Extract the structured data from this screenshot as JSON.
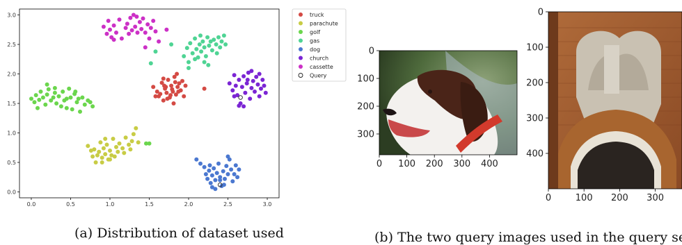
{
  "chart_data": [
    {
      "type": "scatter",
      "title": "",
      "xlabel": "",
      "ylabel": "",
      "xlim": [
        -0.15,
        3.15
      ],
      "ylim": [
        -0.1,
        3.1
      ],
      "xticks": [
        "0.0",
        "0.5",
        "1.0",
        "1.5",
        "2.0",
        "2.5",
        "3.0"
      ],
      "yticks": [
        "0.0",
        "0.5",
        "1.0",
        "1.5",
        "2.0",
        "2.5",
        "3.0"
      ],
      "legend_position": "outside-right",
      "grid": false,
      "series": [
        {
          "name": "truck",
          "color": "#d44a44",
          "cx": 1.75,
          "cy": 1.72,
          "sx": 0.22,
          "sy": 0.13,
          "points": [
            [
              1.55,
              1.78
            ],
            [
              1.6,
              1.7
            ],
            [
              1.62,
              1.62
            ],
            [
              1.66,
              1.85
            ],
            [
              1.68,
              1.55
            ],
            [
              1.7,
              1.75
            ],
            [
              1.72,
              1.68
            ],
            [
              1.74,
              1.9
            ],
            [
              1.76,
              1.6
            ],
            [
              1.78,
              1.8
            ],
            [
              1.8,
              1.7
            ],
            [
              1.82,
              1.95
            ],
            [
              1.84,
              1.65
            ],
            [
              1.86,
              1.78
            ],
            [
              1.88,
              1.84
            ],
            [
              1.9,
              1.72
            ],
            [
              1.92,
              1.88
            ],
            [
              1.94,
              1.62
            ],
            [
              1.64,
              1.66
            ],
            [
              1.69,
              1.8
            ],
            [
              1.73,
              1.58
            ],
            [
              1.79,
              1.74
            ],
            [
              1.83,
              1.86
            ],
            [
              1.87,
              1.7
            ],
            [
              1.58,
              1.62
            ],
            [
              1.96,
              1.8
            ],
            [
              1.81,
              1.5
            ],
            [
              1.68,
              1.92
            ],
            [
              1.71,
              1.78
            ],
            [
              1.77,
              1.64
            ],
            [
              1.85,
              2.0
            ],
            [
              2.2,
              1.75
            ]
          ]
        },
        {
          "name": "parachute",
          "color": "#c8cc45",
          "cx": 1.0,
          "cy": 0.72,
          "sx": 0.2,
          "sy": 0.14,
          "points": [
            [
              0.72,
              0.78
            ],
            [
              0.78,
              0.6
            ],
            [
              0.8,
              0.72
            ],
            [
              0.82,
              0.5
            ],
            [
              0.86,
              0.68
            ],
            [
              0.88,
              0.84
            ],
            [
              0.9,
              0.58
            ],
            [
              0.92,
              0.74
            ],
            [
              0.94,
              0.64
            ],
            [
              0.96,
              0.8
            ],
            [
              0.98,
              0.55
            ],
            [
              1.0,
              0.7
            ],
            [
              1.02,
              0.62
            ],
            [
              1.04,
              0.9
            ],
            [
              1.08,
              0.76
            ],
            [
              1.12,
              0.82
            ],
            [
              1.16,
              0.74
            ],
            [
              1.2,
              0.92
            ],
            [
              1.24,
              0.8
            ],
            [
              1.28,
              0.86
            ],
            [
              1.3,
              0.98
            ],
            [
              1.33,
              1.08
            ],
            [
              1.26,
              0.72
            ],
            [
              0.84,
              0.62
            ],
            [
              0.9,
              0.5
            ],
            [
              1.0,
              0.55
            ],
            [
              0.94,
              0.9
            ],
            [
              1.1,
              0.68
            ],
            [
              1.18,
              0.66
            ],
            [
              1.36,
              0.84
            ],
            [
              0.76,
              0.7
            ],
            [
              1.06,
              0.6
            ]
          ]
        },
        {
          "name": "golf",
          "color": "#6bd64d",
          "cx": 0.4,
          "cy": 1.6,
          "sx": 0.25,
          "sy": 0.1,
          "points": [
            [
              0.0,
              1.58
            ],
            [
              0.04,
              1.52
            ],
            [
              0.06,
              1.64
            ],
            [
              0.1,
              1.56
            ],
            [
              0.12,
              1.7
            ],
            [
              0.15,
              1.6
            ],
            [
              0.18,
              1.48
            ],
            [
              0.2,
              1.65
            ],
            [
              0.22,
              1.74
            ],
            [
              0.25,
              1.55
            ],
            [
              0.28,
              1.6
            ],
            [
              0.3,
              1.68
            ],
            [
              0.32,
              1.5
            ],
            [
              0.35,
              1.62
            ],
            [
              0.38,
              1.45
            ],
            [
              0.4,
              1.7
            ],
            [
              0.42,
              1.55
            ],
            [
              0.45,
              1.58
            ],
            [
              0.48,
              1.75
            ],
            [
              0.5,
              1.6
            ],
            [
              0.52,
              1.4
            ],
            [
              0.55,
              1.66
            ],
            [
              0.58,
              1.52
            ],
            [
              0.6,
              1.58
            ],
            [
              0.62,
              1.36
            ],
            [
              0.65,
              1.6
            ],
            [
              0.68,
              1.48
            ],
            [
              0.72,
              1.55
            ],
            [
              0.75,
              1.52
            ],
            [
              0.78,
              1.45
            ],
            [
              0.08,
              1.42
            ],
            [
              0.3,
              1.76
            ],
            [
              0.45,
              1.42
            ],
            [
              1.46,
              0.82
            ],
            [
              1.5,
              0.82
            ],
            [
              0.2,
              1.82
            ],
            [
              0.56,
              1.7
            ]
          ]
        },
        {
          "name": "gas",
          "color": "#4fd494",
          "cx": 2.2,
          "cy": 2.4,
          "sx": 0.22,
          "sy": 0.18,
          "points": [
            [
              1.94,
              2.3
            ],
            [
              1.98,
              2.44
            ],
            [
              2.0,
              2.2
            ],
            [
              2.02,
              2.52
            ],
            [
              2.05,
              2.35
            ],
            [
              2.08,
              2.6
            ],
            [
              2.1,
              2.42
            ],
            [
              2.12,
              2.28
            ],
            [
              2.14,
              2.5
            ],
            [
              2.16,
              2.38
            ],
            [
              2.18,
              2.55
            ],
            [
              2.2,
              2.45
            ],
            [
              2.22,
              2.3
            ],
            [
              2.24,
              2.62
            ],
            [
              2.26,
              2.48
            ],
            [
              2.28,
              2.55
            ],
            [
              2.3,
              2.4
            ],
            [
              2.32,
              2.58
            ],
            [
              2.35,
              2.5
            ],
            [
              2.38,
              2.62
            ],
            [
              2.4,
              2.45
            ],
            [
              2.42,
              2.55
            ],
            [
              2.45,
              2.65
            ],
            [
              2.47,
              2.5
            ],
            [
              2.2,
              2.2
            ],
            [
              2.25,
              2.15
            ],
            [
              2.0,
              2.1
            ],
            [
              1.52,
              2.18
            ],
            [
              1.58,
              2.38
            ],
            [
              1.78,
              2.5
            ],
            [
              2.08,
              2.25
            ],
            [
              2.36,
              2.35
            ],
            [
              2.15,
              2.65
            ]
          ]
        },
        {
          "name": "dog",
          "color": "#4b78d0",
          "cx": 2.38,
          "cy": 0.3,
          "sx": 0.13,
          "sy": 0.12,
          "points": [
            [
              2.1,
              0.55
            ],
            [
              2.15,
              0.48
            ],
            [
              2.2,
              0.42
            ],
            [
              2.22,
              0.3
            ],
            [
              2.24,
              0.22
            ],
            [
              2.26,
              0.36
            ],
            [
              2.28,
              0.15
            ],
            [
              2.3,
              0.28
            ],
            [
              2.32,
              0.4
            ],
            [
              2.34,
              0.2
            ],
            [
              2.36,
              0.32
            ],
            [
              2.38,
              0.48
            ],
            [
              2.4,
              0.25
            ],
            [
              2.42,
              0.1
            ],
            [
              2.44,
              0.35
            ],
            [
              2.46,
              0.22
            ],
            [
              2.48,
              0.44
            ],
            [
              2.5,
              0.3
            ],
            [
              2.52,
              0.55
            ],
            [
              2.54,
              0.38
            ],
            [
              2.56,
              0.18
            ],
            [
              2.58,
              0.3
            ],
            [
              2.62,
              0.25
            ],
            [
              2.64,
              0.38
            ],
            [
              2.3,
              0.08
            ],
            [
              2.34,
              0.05
            ],
            [
              2.4,
              0.2
            ],
            [
              2.5,
              0.6
            ],
            [
              2.27,
              0.45
            ],
            [
              2.45,
              0.12
            ],
            [
              2.6,
              0.45
            ]
          ]
        },
        {
          "name": "church",
          "color": "#7b25d4",
          "cx": 2.72,
          "cy": 1.78,
          "sx": 0.14,
          "sy": 0.14,
          "points": [
            [
              2.52,
              1.84
            ],
            [
              2.56,
              1.72
            ],
            [
              2.58,
              1.98
            ],
            [
              2.6,
              1.8
            ],
            [
              2.62,
              1.64
            ],
            [
              2.64,
              1.9
            ],
            [
              2.66,
              1.5
            ],
            [
              2.68,
              1.78
            ],
            [
              2.7,
              1.96
            ],
            [
              2.72,
              1.68
            ],
            [
              2.74,
              1.84
            ],
            [
              2.76,
              2.02
            ],
            [
              2.78,
              1.58
            ],
            [
              2.8,
              1.76
            ],
            [
              2.82,
              1.88
            ],
            [
              2.84,
              1.7
            ],
            [
              2.86,
              1.95
            ],
            [
              2.88,
              1.82
            ],
            [
              2.9,
              1.62
            ],
            [
              2.92,
              1.75
            ],
            [
              2.94,
              1.9
            ],
            [
              2.96,
              1.8
            ],
            [
              2.98,
              1.68
            ],
            [
              2.7,
              1.45
            ],
            [
              2.64,
              1.46
            ],
            [
              2.58,
              1.62
            ],
            [
              2.75,
              1.9
            ],
            [
              2.9,
              2.0
            ],
            [
              2.8,
              2.05
            ]
          ]
        },
        {
          "name": "cassette",
          "color": "#cc30c6",
          "cx": 1.25,
          "cy": 2.75,
          "sx": 0.22,
          "sy": 0.12,
          "points": [
            [
              0.92,
              2.8
            ],
            [
              0.96,
              2.68
            ],
            [
              0.98,
              2.9
            ],
            [
              1.0,
              2.75
            ],
            [
              1.02,
              2.62
            ],
            [
              1.05,
              2.82
            ],
            [
              1.08,
              2.7
            ],
            [
              1.12,
              2.92
            ],
            [
              1.15,
              2.6
            ],
            [
              1.2,
              2.78
            ],
            [
              1.22,
              2.85
            ],
            [
              1.24,
              2.68
            ],
            [
              1.26,
              2.95
            ],
            [
              1.28,
              2.74
            ],
            [
              1.3,
              3.0
            ],
            [
              1.32,
              2.8
            ],
            [
              1.35,
              2.7
            ],
            [
              1.38,
              2.88
            ],
            [
              1.4,
              2.76
            ],
            [
              1.42,
              2.94
            ],
            [
              1.45,
              2.7
            ],
            [
              1.48,
              2.84
            ],
            [
              1.5,
              2.6
            ],
            [
              1.52,
              2.78
            ],
            [
              1.55,
              2.9
            ],
            [
              1.58,
              2.72
            ],
            [
              1.62,
              2.55
            ],
            [
              1.45,
              2.45
            ],
            [
              1.34,
              2.97
            ],
            [
              1.72,
              2.75
            ],
            [
              1.05,
              2.58
            ]
          ]
        },
        {
          "name": "Query",
          "color": "#ffffff",
          "stroke": "#222222",
          "hollow": true,
          "points": [
            [
              2.4,
              0.12
            ],
            [
              2.66,
              1.6
            ]
          ]
        }
      ]
    },
    {
      "type": "image",
      "subject": "dog query image",
      "xticks": [
        "0",
        "100",
        "200",
        "300",
        "400"
      ],
      "yticks": [
        "0",
        "100",
        "200",
        "300"
      ],
      "xlim": [
        0,
        500
      ],
      "ylim": [
        375,
        0
      ]
    },
    {
      "type": "image",
      "subject": "church query image",
      "xticks": [
        "0",
        "100",
        "200",
        "300"
      ],
      "yticks": [
        "0",
        "100",
        "200",
        "300",
        "400"
      ],
      "xlim": [
        0,
        375
      ],
      "ylim": [
        500,
        0
      ]
    }
  ],
  "captions": {
    "a": "(a) Distribution of dataset used",
    "b": "(b) The two query images used in the query set"
  }
}
